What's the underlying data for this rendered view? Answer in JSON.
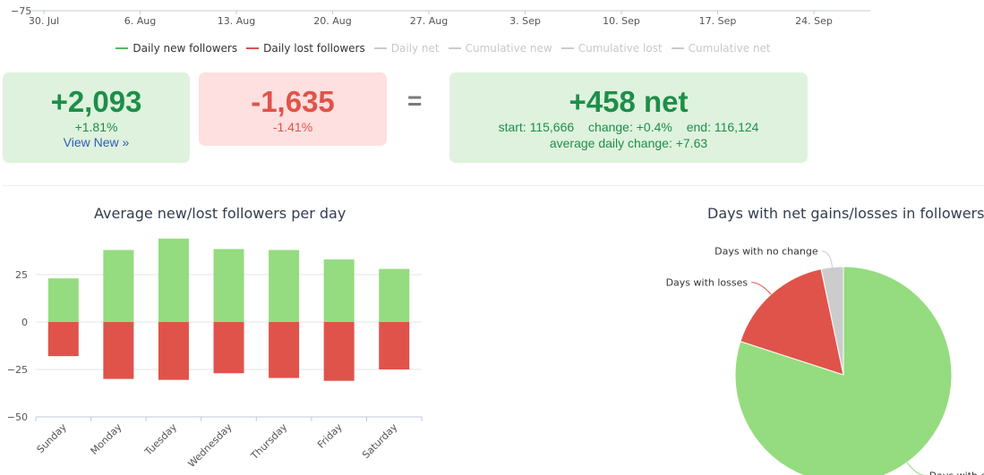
{
  "timeline": {
    "y_tick_label": "−75",
    "x_ticks": [
      "30. Jul",
      "6. Aug",
      "13. Aug",
      "20. Aug",
      "27. Aug",
      "3. Sep",
      "10. Sep",
      "17. Sep",
      "24. Sep"
    ]
  },
  "legend": [
    {
      "label": "Daily new followers",
      "color": "#5cb85c",
      "active": true
    },
    {
      "label": "Daily lost followers",
      "color": "#d9534f",
      "active": true
    },
    {
      "label": "Daily net",
      "color": "#cccccc",
      "active": false
    },
    {
      "label": "Cumulative new",
      "color": "#cccccc",
      "active": false
    },
    {
      "label": "Cumulative lost",
      "color": "#cccccc",
      "active": false
    },
    {
      "label": "Cumulative net",
      "color": "#cccccc",
      "active": false
    }
  ],
  "stats": {
    "new": {
      "value": "+2,093",
      "pct": "+1.81%",
      "link": "View New »"
    },
    "lost": {
      "value": "-1,635",
      "pct": "-1.41%"
    },
    "equals": "=",
    "net": {
      "value": "+458 net",
      "start": "start: 115,666",
      "change": "change: +0.4%",
      "end": "end: 116,124",
      "avg": "average daily change: +7.63"
    }
  },
  "colors": {
    "gain": "#94dc7f",
    "loss": "#e0534a",
    "neutral": "#cccccc"
  },
  "chart_data": [
    {
      "type": "bar",
      "title": "Average new/lost followers per day",
      "categories": [
        "Sunday",
        "Monday",
        "Tuesday",
        "Wednesday",
        "Thursday",
        "Friday",
        "Saturday"
      ],
      "series": [
        {
          "name": "Daily new followers",
          "values": [
            23,
            38,
            44,
            38.5,
            38,
            33,
            28
          ]
        },
        {
          "name": "Daily lost followers",
          "values": [
            -18,
            -30,
            -30.5,
            -27,
            -29.5,
            -31,
            -25
          ]
        }
      ],
      "yticks": [
        "25",
        "0",
        "−25",
        "−50"
      ],
      "ylim": [
        -50,
        44
      ],
      "grid": true
    },
    {
      "type": "pie",
      "title": "Days with net gains/losses in followers",
      "slices": [
        {
          "label": "Days with gains",
          "value": 80,
          "color": "#94dc7f"
        },
        {
          "label": "Days with losses",
          "value": 16.7,
          "color": "#e0534a"
        },
        {
          "label": "Days with no change",
          "value": 3.3,
          "color": "#cccccc"
        }
      ]
    }
  ]
}
